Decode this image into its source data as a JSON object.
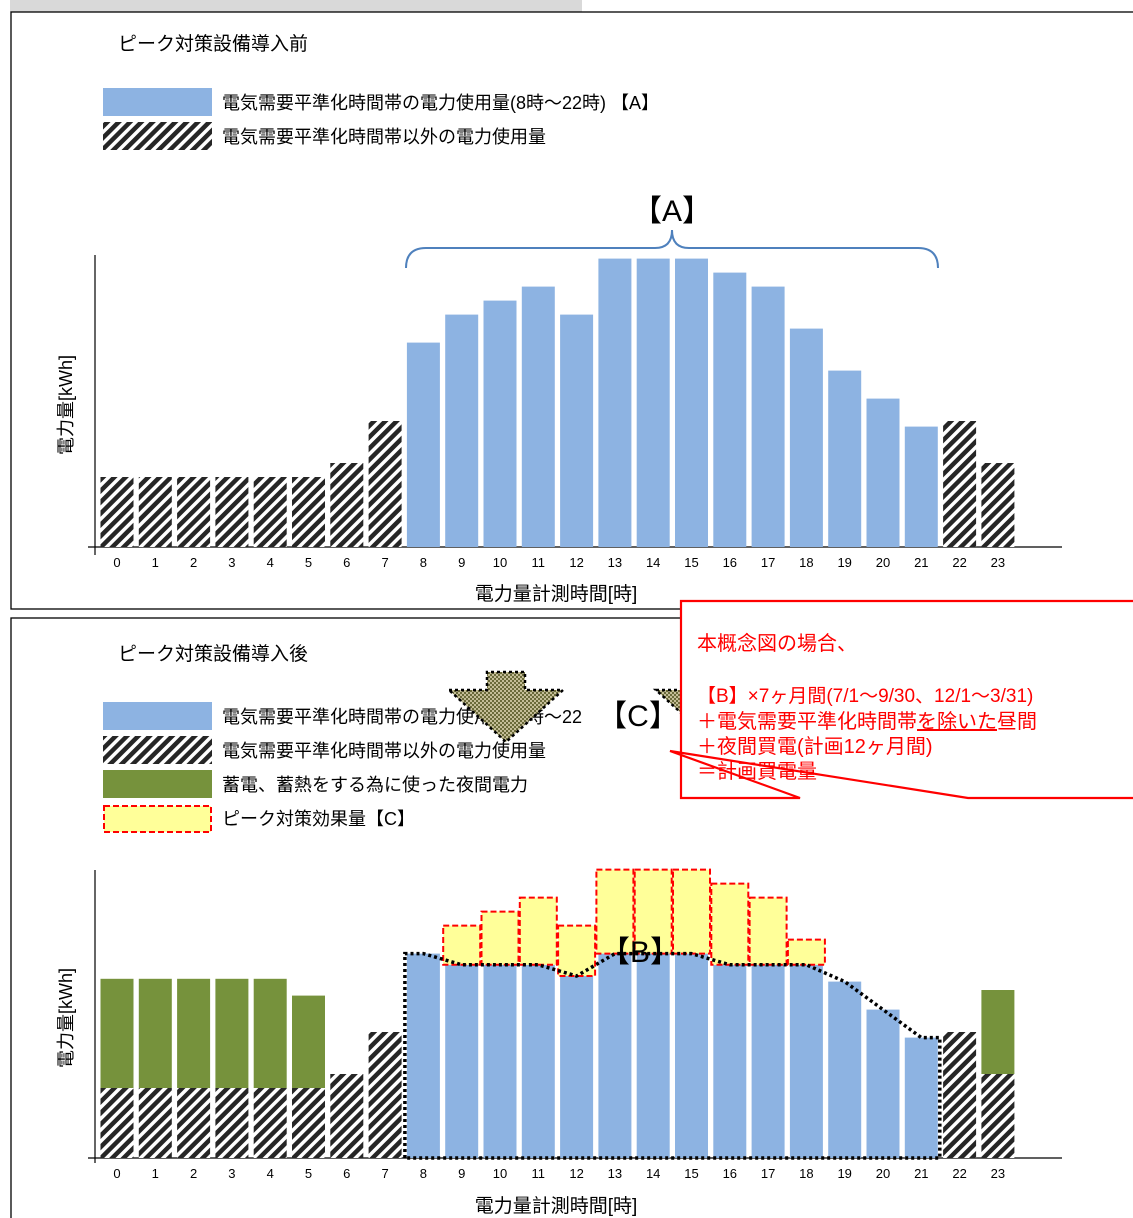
{
  "colors": {
    "blue": "#8db3e2",
    "green": "#76923c",
    "yellow": "#ffff99",
    "red": "#ff0000",
    "hatch_dark": "#262626",
    "brace": "#4f81bd",
    "gray_arrow": "#a6a6a6"
  },
  "top_panel": {
    "title": "ピーク対策設備導入前",
    "legend": [
      {
        "label": "電気需要平準化時間帯の電力使用量(8時～22時) 【A】",
        "swatch": "blue"
      },
      {
        "label": "電気需要平準化時間帯以外の電力使用量",
        "swatch": "hatch"
      }
    ],
    "brace_label": "【A】",
    "ylabel": "電力量[kWh]",
    "xlabel": "電力量計測時間[時]"
  },
  "bottom_panel": {
    "title": "ピーク対策設備導入後",
    "legend": [
      {
        "label": "電気需要平準化時間帯の電力使用量(8時～22",
        "swatch": "blue"
      },
      {
        "label": "電気需要平準化時間帯以外の電力使用量",
        "swatch": "hatch"
      },
      {
        "label": "蓄電、蓄熱をする為に使った夜間電力",
        "swatch": "green"
      },
      {
        "label": "ピーク対策効果量【C】",
        "swatch": "yellow"
      }
    ],
    "label_b": "【B】",
    "label_c": "【C】",
    "ylabel": "電力量[kWh]",
    "xlabel": "電力量計測時間[時]"
  },
  "callout": {
    "line1": "本概念図の場合、",
    "line2": "【B】×7ヶ月間(7/1～9/30、12/1～3/31)",
    "line3_pre": "＋電気需要平準化時間帯",
    "line3_underlined": "を除いた",
    "line3_post": "昼間",
    "line4": "＋夜間買電(計画12ヶ月間)",
    "line5": "＝計画買電量"
  },
  "chart_data": [
    {
      "type": "bar",
      "title": "ピーク対策設備導入前",
      "xlabel": "電力量計測時間[時]",
      "ylabel": "電力量[kWh]",
      "categories": [
        "0",
        "1",
        "2",
        "3",
        "4",
        "5",
        "6",
        "7",
        "8",
        "9",
        "10",
        "11",
        "12",
        "13",
        "14",
        "15",
        "16",
        "17",
        "18",
        "19",
        "20",
        "21",
        "22",
        "23"
      ],
      "ylim": [
        0,
        10.5
      ],
      "series": [
        {
          "name": "電気需要平準化時間帯の電力使用量(8時～22時) 【A】",
          "values": [
            0,
            0,
            0,
            0,
            0,
            0,
            0,
            0,
            7.3,
            8.3,
            8.8,
            9.3,
            8.3,
            10.3,
            10.3,
            10.3,
            9.8,
            9.3,
            7.8,
            6.3,
            5.3,
            4.3,
            0,
            0
          ]
        },
        {
          "name": "電気需要平準化時間帯以外の電力使用量",
          "values": [
            2.5,
            2.5,
            2.5,
            2.5,
            2.5,
            2.5,
            3.0,
            4.5,
            0,
            0,
            0,
            0,
            0,
            0,
            0,
            0,
            0,
            0,
            0,
            0,
            0,
            0,
            4.5,
            3.0
          ]
        }
      ]
    },
    {
      "type": "bar",
      "title": "ピーク対策設備導入後",
      "xlabel": "電力量計測時間[時]",
      "ylabel": "電力量[kWh]",
      "categories": [
        "0",
        "1",
        "2",
        "3",
        "4",
        "5",
        "6",
        "7",
        "8",
        "9",
        "10",
        "11",
        "12",
        "13",
        "14",
        "15",
        "16",
        "17",
        "18",
        "19",
        "20",
        "21",
        "22",
        "23"
      ],
      "ylim": [
        0,
        10.5
      ],
      "series": [
        {
          "name": "電気需要平準化時間帯の電力使用量(8時～22",
          "values": [
            0,
            0,
            0,
            0,
            0,
            0,
            0,
            0,
            7.3,
            6.9,
            6.9,
            6.9,
            6.5,
            7.3,
            7.3,
            7.3,
            6.9,
            6.9,
            6.9,
            6.3,
            5.3,
            4.3,
            0,
            0
          ]
        },
        {
          "name": "電気需要平準化時間帯以外の電力使用量",
          "values": [
            2.5,
            2.5,
            2.5,
            2.5,
            2.5,
            2.5,
            3.0,
            4.5,
            0,
            0,
            0,
            0,
            0,
            0,
            0,
            0,
            0,
            0,
            0,
            0,
            0,
            0,
            4.5,
            3.0
          ]
        },
        {
          "name": "蓄電、蓄熱をする為に使った夜間電力",
          "values": [
            3.9,
            3.9,
            3.9,
            3.9,
            3.9,
            3.3,
            0,
            0,
            0,
            0,
            0,
            0,
            0,
            0,
            0,
            0,
            0,
            0,
            0,
            0,
            0,
            0,
            0,
            3.0
          ]
        },
        {
          "name": "ピーク対策効果量【C】",
          "values": [
            0,
            0,
            0,
            0,
            0,
            0,
            0,
            0,
            0,
            1.4,
            1.9,
            2.4,
            1.8,
            3.0,
            3.0,
            3.0,
            2.9,
            2.4,
            0.9,
            0,
            0,
            0,
            0,
            0
          ]
        }
      ]
    }
  ]
}
